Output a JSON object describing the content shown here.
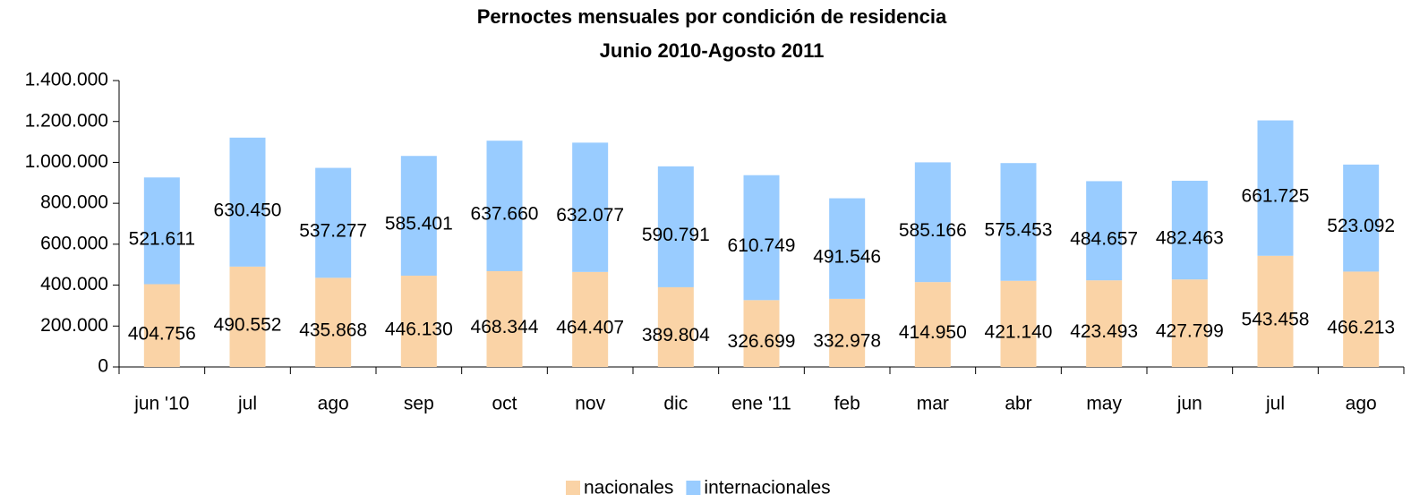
{
  "chart_data": {
    "type": "bar",
    "stacked": true,
    "title": "Pernoctes mensuales por condición de residencia",
    "subtitle": "Junio 2010-Agosto 2011",
    "categories": [
      "jun '10",
      "jul",
      "ago",
      "sep",
      "oct",
      "nov",
      "dic",
      "ene '11",
      "feb",
      "mar",
      "abr",
      "may",
      "jun",
      "jul",
      "ago"
    ],
    "series": [
      {
        "name": "nacionales",
        "color": "#fad3a6",
        "values": [
          404756,
          490552,
          435868,
          446130,
          468344,
          464407,
          389804,
          326699,
          332978,
          414950,
          421140,
          423493,
          427799,
          543458,
          466213
        ],
        "value_labels": [
          "404.756",
          "490.552",
          "435.868",
          "446.130",
          "468.344",
          "464.407",
          "389.804",
          "326.699",
          "332.978",
          "414.950",
          "421.140",
          "423.493",
          "427.799",
          "543.458",
          "466.213"
        ]
      },
      {
        "name": "internacionales",
        "color": "#99ccff",
        "values": [
          521611,
          630450,
          537277,
          585401,
          637660,
          632077,
          590791,
          610749,
          491546,
          585166,
          575453,
          484657,
          482463,
          661725,
          523092
        ],
        "value_labels": [
          "521.611",
          "630.450",
          "537.277",
          "585.401",
          "637.660",
          "632.077",
          "590.791",
          "610.749",
          "491.546",
          "585.166",
          "575.453",
          "484.657",
          "482.463",
          "661.725",
          "523.092"
        ]
      }
    ],
    "ylim": [
      0,
      1400000
    ],
    "yticks": [
      0,
      {
        "value": 200000,
        "label": "200.000"
      },
      {
        "value": 400000,
        "label": "400.000"
      },
      {
        "value": 600000,
        "label": "600.000"
      },
      {
        "value": 800000,
        "label": "800.000"
      },
      {
        "value": 1000000,
        "label": "1.000.000"
      },
      {
        "value": 1200000,
        "label": "1.200.000"
      },
      {
        "value": 1400000,
        "label": "1.400.000"
      }
    ],
    "legend": "bottom"
  }
}
